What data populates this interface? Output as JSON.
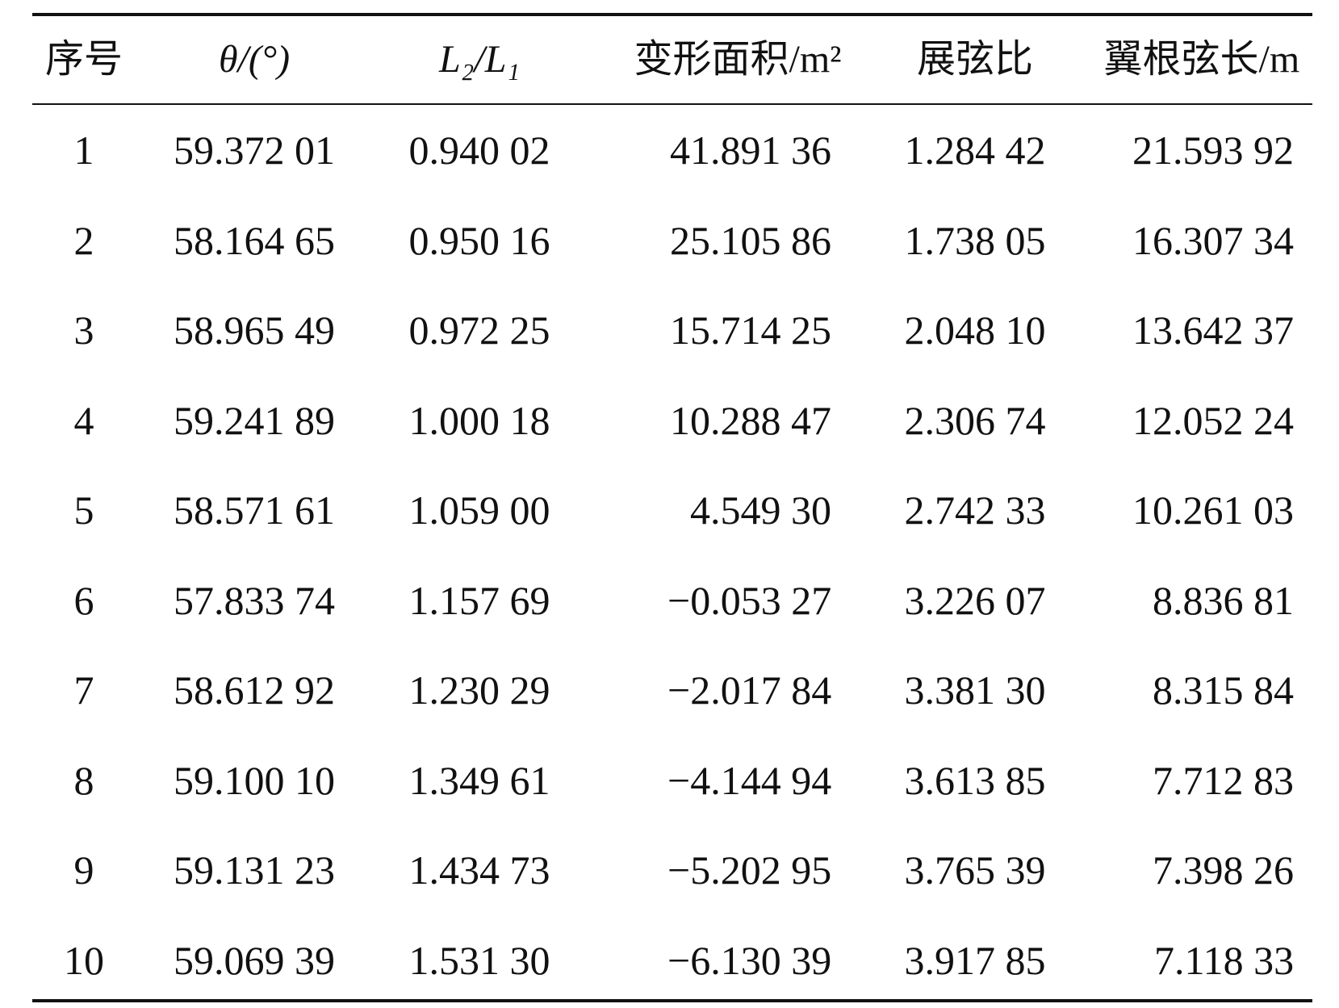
{
  "table": {
    "header": [
      "序号",
      "θ/(°)",
      "L₂/L₁",
      "变形面积/m²",
      "展弦比",
      "翼根弦长/m"
    ],
    "rows": [
      [
        "1",
        "59.372 01",
        "0.940 02",
        "41.891 36",
        "1.284 42",
        "21.593 92"
      ],
      [
        "2",
        "58.164 65",
        "0.950 16",
        "25.105 86",
        "1.738 05",
        "16.307 34"
      ],
      [
        "3",
        "58.965 49",
        "0.972 25",
        "15.714 25",
        "2.048 10",
        "13.642 37"
      ],
      [
        "4",
        "59.241 89",
        "1.000 18",
        "10.288 47",
        "2.306 74",
        "12.052 24"
      ],
      [
        "5",
        "58.571 61",
        "1.059 00",
        "4.549 30",
        "2.742 33",
        "10.261 03"
      ],
      [
        "6",
        "57.833 74",
        "1.157 69",
        "−0.053 27",
        "3.226 07",
        "8.836 81"
      ],
      [
        "7",
        "58.612 92",
        "1.230 29",
        "−2.017 84",
        "3.381 30",
        "8.315 84"
      ],
      [
        "8",
        "59.100 10",
        "1.349 61",
        "−4.144 94",
        "3.613 85",
        "7.712 83"
      ],
      [
        "9",
        "59.131 23",
        "1.434 73",
        "−5.202 95",
        "3.765 39",
        "7.398 26"
      ],
      [
        "10",
        "59.069 39",
        "1.531 30",
        "−6.130 39",
        "3.917 85",
        "7.118 33"
      ]
    ]
  }
}
